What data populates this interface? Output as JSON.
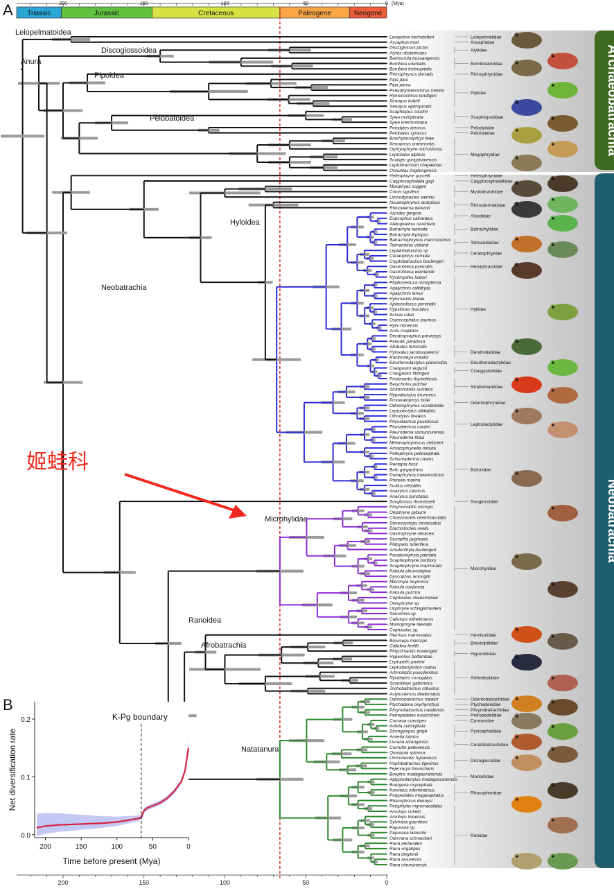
{
  "panel_a_label": "A",
  "panel_b_label": "B",
  "periods": [
    {
      "name": "Triassic",
      "color": "#29a6d6"
    },
    {
      "name": "Jurassic",
      "color": "#62c13f"
    },
    {
      "name": "Cretaceous",
      "color": "#d7e342"
    },
    {
      "name": "Paleogene",
      "color": "#f9a646"
    },
    {
      "name": "Neogene",
      "color": "#ef5e3a"
    }
  ],
  "axis": {
    "mya_unit": "(Mya)",
    "ticks": [
      "200",
      "150",
      "100",
      "50",
      "0"
    ]
  },
  "superfamilies": [
    "Leiopelmatoidea",
    "Anura",
    "Discoglossoidea",
    "Pipoidea",
    "Pelobatoidea",
    "Neobatrachia",
    "Hyloidea",
    "Microhylidae",
    "Ranoidea",
    "Afrobatrachia",
    "Natatanura"
  ],
  "annotation": {
    "text": "姬蛙科",
    "color": "#f0281e"
  },
  "clade_bars": [
    {
      "name": "Archaeobatrachia",
      "color": "#3f6a1f"
    },
    {
      "name": "Neobatrachia",
      "color": "#1f5e6e"
    }
  ],
  "species": [
    "Leiopelma hochstetteri",
    "Ascaphus truei",
    "Discoglossus pictus",
    "Alytes obstetricans",
    "Barbourula busuangensis",
    "Bombina orientalis",
    "Bombina fortinupitalis",
    "Rhinophrynus dorsalis",
    "Pipa pipa",
    "Pipa parva",
    "Pseudhymenochirus merlini",
    "Hymenochirus boettgeri",
    "Xenopus kobeli",
    "Xenopus epitropicalis",
    "Scaphiopus couchii",
    "Spea multiplicata",
    "Spea intermontana",
    "Pelodytes ibericus",
    "Pelobates syriacus",
    "Brachytarsophrys feae",
    "Xenophrys omeimontis",
    "Ophryophryne microstoma",
    "Leptolalax alpinus",
    "Scutiger gongshanensis",
    "Leptobrachium chapaense",
    "Oreolalax jingdongensis",
    "Heleophryne purcelli",
    "Calyptocephalella gayi",
    "Mixophyes coggeri",
    "Crinia signifera",
    "Limnodynastes salmini",
    "Insuetophrynus acarpicus",
    "Rhinoderma darwinii",
    "Alsodes gargola",
    "Eupsophus calcaratus",
    "Atelognathus reverberii",
    "Batrachyla taeniata",
    "Batrachyla leptopus",
    "Batrachophrynus macrostomus",
    "Telmatobius vellardi",
    "Lepidobatrachus sp",
    "Ceratophrys cornuta",
    "Cryptobatrachus boulengeri",
    "Gastrotheca pseustes",
    "Gastrotheca weinlandii",
    "Nyctimystes kubori",
    "Phyllomedusa tomopterna",
    "Agalychnis callidryas",
    "Agalychnis lemur",
    "Hylomantis lindae",
    "Aplastodiscus perviridis",
    "Hypsiboas fasciatus",
    "Scinax ruber",
    "Osteocephalus taurinus",
    "Hyla chinensis",
    "Acris crepitans",
    "Dendropsophus parviceps",
    "Pseudis paradoxa",
    "Allobates femoralis",
    "Hyloxalus jacobuspetersi",
    "Ranitomeya imitator",
    "Eleutherodactylus planirostris",
    "Craugastor augusti",
    "Craugastor fitzingeri",
    "Pristimantis thymelensis",
    "Barycholos pulcher",
    "Strabomantis sulcatus",
    "Hypodactylus brunneus",
    "Proceratophrys boiei",
    "Odontophrynus occidentalis",
    "Leptodactylus albilabris",
    "Lithodytes lineatus",
    "Physalaemus pustulosus",
    "Physalaemus cuvieri",
    "Pleurodema somuncurensis",
    "Pleurodema thaul",
    "Melanophryniscus stelzneri",
    "Amazophrynella minuta",
    "Peltophryne peltocephala",
    "Schismaderma carens",
    "Rentapia hosii",
    "Bufo gargarizans",
    "Duttaphrynus melanostictus",
    "Rhinella marina",
    "Incilius nebulifer",
    "Anaxyrus canorus",
    "Anaxyrus punctatus",
    "Sooglossus thomasseti",
    "Phrynomantis microps",
    "Otophryne pyburni",
    "Chiasmocleis ventrimaculata",
    "Stereocyclops incrassatus",
    "Elachistocleis ovalis",
    "Gastrophryne olivacea",
    "Stumpffia pygmaea",
    "Platypelis tuberifera",
    "Anodonthyla boulengeri",
    "Paradoxophyla palmata",
    "Scaphiophryne boribory",
    "Scaphiophryne marmorata",
    "Kaloula pleurostigma",
    "Dyscophus antongilii",
    "Microhyla heymonsi",
    "Kaloula conjuncta",
    "Kaloula pulchra",
    "Cophixalus cheesmanae",
    "Oreophryne sp.",
    "Liophryne schlaginhaufeni",
    "Xenorhina sp.",
    "Callulops wilhelmanus",
    "Mantophryne lateralis",
    "Cophixalus sp.",
    "Hemisus marmoratus",
    "Breviceps macrops",
    "Callulina kreffti",
    "Phlyctimantis boulengeri",
    "Hyperolius balfambae",
    "Leptopelis parkeri",
    "Leptodactylodon ovatus",
    "Arthroleptis poecilonotus",
    "Nyctibates corrugatus",
    "Scotobleps gabonicus",
    "Trichobatrachus robustus",
    "Astylosternus diadematus",
    "Odontobatrachus natator",
    "Ptychadena oxyrhynchus",
    "Phrynobatrachus natalensis",
    "Petropedetes euskircheni",
    "Conraua crassipes",
    "Aubria subsigillata",
    "Strongylopus grayii",
    "Amietia lubrica",
    "Liurana xizangensis",
    "Cornufer pelewensis",
    "Quasipaa spinosa",
    "Limnonectes fujianensis",
    "Hoplobatrachus tigerinus",
    "Fejervarya limnocharis",
    "Boophis madagascariensis",
    "Aglyptodactylus madagascariensis",
    "Buergeria oxycephala",
    "Kurixalus odontotarsus",
    "Polypedates megacephalus",
    "Rhacophorus dennysi",
    "Pelophylax nigromaculatus",
    "Amolops ricketti",
    "Amolops loloensis",
    "Sylvirana guentheri",
    "Papurana sp.",
    "Papurana latouchii",
    "Odorrana schmackeri",
    "Rana berlandieri",
    "Rana virgatipes",
    "Rana draytonii",
    "Rana amurensis",
    "Rana chensinensis"
  ],
  "families": [
    {
      "name": "Leiopelmatidae",
      "from": 0,
      "to": 0
    },
    {
      "name": "Ascaphidae",
      "from": 1,
      "to": 1
    },
    {
      "name": "Alytidae",
      "from": 2,
      "to": 3
    },
    {
      "name": "Bombinatoridae",
      "from": 4,
      "to": 6
    },
    {
      "name": "Rhinophrynidae",
      "from": 7,
      "to": 7
    },
    {
      "name": "Pipidae",
      "from": 8,
      "to": 13
    },
    {
      "name": "Scaphiopodidae",
      "from": 14,
      "to": 16
    },
    {
      "name": "Pelodytidae",
      "from": 17,
      "to": 17
    },
    {
      "name": "Pelobatidae",
      "from": 18,
      "to": 18
    },
    {
      "name": "Megophryidae",
      "from": 19,
      "to": 25
    },
    {
      "name": "Heleophrynidae",
      "from": 26,
      "to": 26
    },
    {
      "name": "Calyptocephalellidae",
      "from": 27,
      "to": 27
    },
    {
      "name": "Myobatrachidae",
      "from": 28,
      "to": 30
    },
    {
      "name": "Rhinodermatidae",
      "from": 31,
      "to": 32
    },
    {
      "name": "Alsodidae",
      "from": 33,
      "to": 34
    },
    {
      "name": "Batrachylidae",
      "from": 35,
      "to": 37
    },
    {
      "name": "Telmatobiidae",
      "from": 38,
      "to": 39
    },
    {
      "name": "Ceratophryidae",
      "from": 40,
      "to": 41
    },
    {
      "name": "Hemiphractidae",
      "from": 42,
      "to": 44
    },
    {
      "name": "Hylidae",
      "from": 45,
      "to": 57
    },
    {
      "name": "Dendrobatidae",
      "from": 58,
      "to": 60
    },
    {
      "name": "Eleutherodactylidae",
      "from": 61,
      "to": 61
    },
    {
      "name": "Craugastoridae",
      "from": 62,
      "to": 63
    },
    {
      "name": "Strabomantidae",
      "from": 64,
      "to": 67
    },
    {
      "name": "Odontophrynidae",
      "from": 68,
      "to": 69
    },
    {
      "name": "Leptodactylidae",
      "from": 70,
      "to": 75
    },
    {
      "name": "Bufonidae",
      "from": 76,
      "to": 86
    },
    {
      "name": "Sooglossidae",
      "from": 87,
      "to": 87
    },
    {
      "name": "Microhylidae",
      "from": 88,
      "to": 111
    },
    {
      "name": "Hemisotidae",
      "from": 112,
      "to": 112
    },
    {
      "name": "Brevicipitidae",
      "from": 113,
      "to": 114
    },
    {
      "name": "Hyperoliidae",
      "from": 115,
      "to": 116
    },
    {
      "name": "Arthroleptidae",
      "from": 117,
      "to": 123
    },
    {
      "name": "Odontobatrachidae",
      "from": 124,
      "to": 124
    },
    {
      "name": "Ptychadenidae",
      "from": 125,
      "to": 125
    },
    {
      "name": "Phrynobatrachidae",
      "from": 126,
      "to": 126
    },
    {
      "name": "Petropedetidae",
      "from": 127,
      "to": 127
    },
    {
      "name": "Conrauidae",
      "from": 128,
      "to": 128
    },
    {
      "name": "Pyxicephalidae",
      "from": 129,
      "to": 131
    },
    {
      "name": "Ceratobatrachidae",
      "from": 132,
      "to": 133
    },
    {
      "name": "Dicroglossidae",
      "from": 134,
      "to": 137
    },
    {
      "name": "Mantellidae",
      "from": 138,
      "to": 139
    },
    {
      "name": "Rhacophoridae",
      "from": 140,
      "to": 143
    },
    {
      "name": "Ranidae",
      "from": 144,
      "to": 155
    }
  ],
  "chart_data": {
    "type": "line",
    "title": "",
    "xlabel": "Time before present (Mya)",
    "ylabel": "Net diversification rate",
    "annotation": "K-Pg boundary",
    "boundary_x": 66,
    "xlim": [
      215,
      0
    ],
    "ylim": [
      -0.005,
      0.23
    ],
    "xticks": [
      "200",
      "150",
      "100",
      "50",
      "0"
    ],
    "yticks": [
      "0.0",
      "0.1",
      "0.2"
    ],
    "series": [
      {
        "x": [
          212,
          200,
          180,
          160,
          140,
          120,
          100,
          90,
          80,
          70,
          66,
          62,
          58,
          50,
          40,
          30,
          20,
          10,
          5,
          0
        ],
        "y": [
          0.012,
          0.015,
          0.017,
          0.018,
          0.019,
          0.02,
          0.022,
          0.024,
          0.026,
          0.028,
          0.03,
          0.042,
          0.046,
          0.05,
          0.055,
          0.063,
          0.075,
          0.092,
          0.11,
          0.15
        ]
      }
    ],
    "line_color": "#d6203c",
    "band_color": "#7b86e6"
  }
}
